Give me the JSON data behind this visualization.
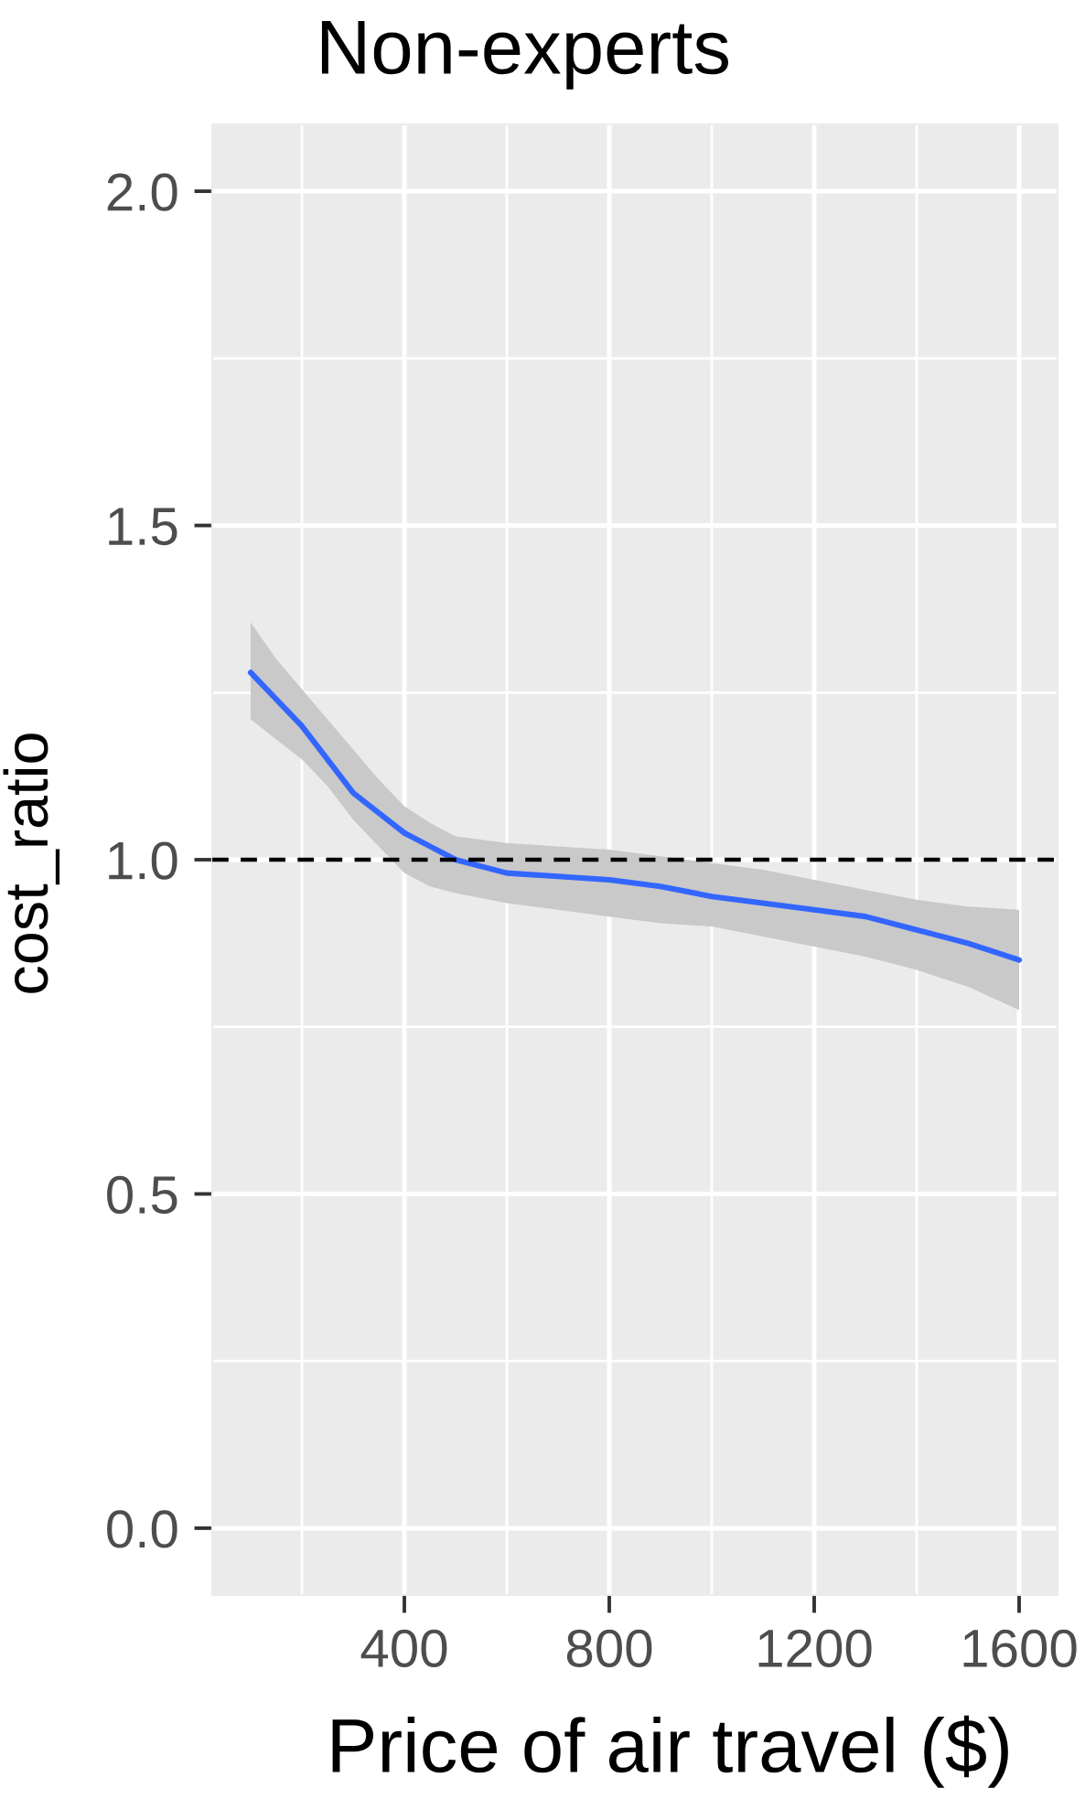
{
  "chart_data": {
    "type": "line",
    "title": "Non-experts",
    "xlabel": "Price of air travel ($)",
    "ylabel": "cost_ratio",
    "x": [
      100,
      150,
      200,
      250,
      300,
      350,
      400,
      450,
      500,
      600,
      700,
      800,
      900,
      1000,
      1100,
      1200,
      1300,
      1400,
      1500,
      1600
    ],
    "series": [
      {
        "color": "#3366ff",
        "values": [
          1.28,
          1.24,
          1.2,
          1.15,
          1.1,
          1.07,
          1.04,
          1.02,
          1.0,
          0.98,
          0.975,
          0.97,
          0.96,
          0.945,
          0.935,
          0.925,
          0.915,
          0.895,
          0.875,
          0.85
        ],
        "lower": [
          1.21,
          1.18,
          1.15,
          1.11,
          1.06,
          1.02,
          0.98,
          0.96,
          0.95,
          0.935,
          0.925,
          0.915,
          0.905,
          0.9,
          0.885,
          0.87,
          0.855,
          0.835,
          0.81,
          0.775
        ],
        "upper": [
          1.355,
          1.3,
          1.255,
          1.21,
          1.165,
          1.12,
          1.08,
          1.055,
          1.035,
          1.025,
          1.02,
          1.015,
          1.005,
          0.995,
          0.985,
          0.97,
          0.955,
          0.94,
          0.93,
          0.925
        ]
      }
    ],
    "xlim": [
      25,
      1675
    ],
    "ylim": [
      -0.1,
      2.1
    ],
    "xticks": [
      400,
      800,
      1200,
      1600
    ],
    "yticks": [
      {
        "value": 0,
        "label": "0.0"
      },
      {
        "value": 0.5,
        "label": "0.5"
      },
      {
        "value": 1,
        "label": "1.0"
      },
      {
        "value": 1.5,
        "label": "1.5"
      },
      {
        "value": 2,
        "label": "2.0"
      }
    ],
    "grid": true,
    "ref_lines": [
      {
        "axis": "y",
        "value": 1,
        "color": "#000000",
        "line_style": "dashed"
      }
    ]
  }
}
